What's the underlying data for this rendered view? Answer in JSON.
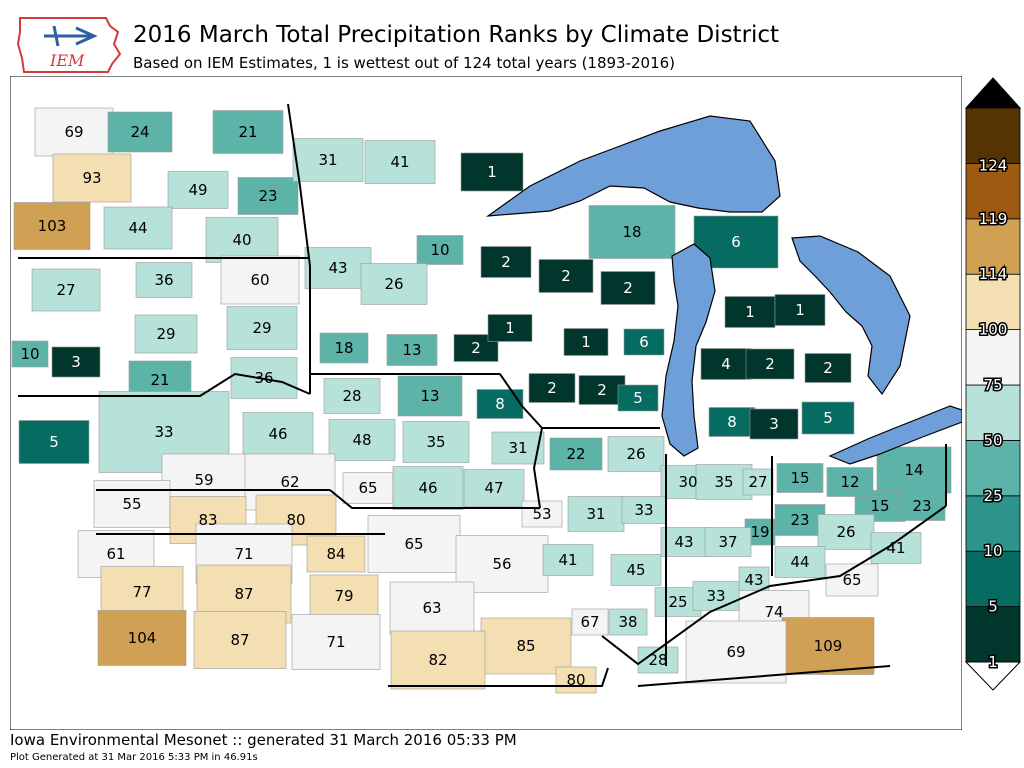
{
  "header": {
    "title": "2016 March Total Precipitation Ranks by Climate District",
    "subtitle": "Based on IEM Estimates, 1 is wettest out of 124 total years (1893-2016)",
    "logo_text": "IEM"
  },
  "footer": {
    "line1": "Iowa Environmental Mesonet :: generated 31 March 2016 05:33 PM",
    "line2": "Plot Generated at 31 Mar 2016 5:33 PM in 46.91s"
  },
  "colors": {
    "water": "#6f9fd8",
    "background": "#ffffff"
  },
  "colorbar": {
    "ticks": [
      "1",
      "5",
      "10",
      "25",
      "50",
      "75",
      "100",
      "114",
      "119",
      "124"
    ],
    "bins": [
      {
        "color": "#00362b"
      },
      {
        "color": "#066b60"
      },
      {
        "color": "#2c948b"
      },
      {
        "color": "#5eb3a8"
      },
      {
        "color": "#b6e2da"
      },
      {
        "color": "#f4f4f4"
      },
      {
        "color": "#f3dfb2"
      },
      {
        "color": "#d0a154"
      },
      {
        "color": "#9c5a10"
      },
      {
        "color": "#563305"
      }
    ]
  },
  "districts": [
    {
      "rank": "69",
      "color": "#f4f4f4"
    },
    {
      "rank": "24",
      "color": "#5eb3a8"
    },
    {
      "rank": "21",
      "color": "#5eb3a8"
    },
    {
      "rank": "93",
      "color": "#f3dfb2"
    },
    {
      "rank": "49",
      "color": "#b6e2da"
    },
    {
      "rank": "23",
      "color": "#5eb3a8"
    },
    {
      "rank": "103",
      "color": "#d0a154"
    },
    {
      "rank": "44",
      "color": "#b6e2da"
    },
    {
      "rank": "40",
      "color": "#b6e2da"
    },
    {
      "rank": "31",
      "color": "#b6e2da"
    },
    {
      "rank": "41",
      "color": "#b6e2da"
    },
    {
      "rank": "1",
      "color": "#00362b"
    },
    {
      "rank": "27",
      "color": "#b6e2da"
    },
    {
      "rank": "36",
      "color": "#b6e2da"
    },
    {
      "rank": "60",
      "color": "#f4f4f4"
    },
    {
      "rank": "43",
      "color": "#b6e2da"
    },
    {
      "rank": "10",
      "color": "#5eb3a8"
    },
    {
      "rank": "26",
      "color": "#b6e2da"
    },
    {
      "rank": "2",
      "color": "#00362b"
    },
    {
      "rank": "2",
      "color": "#00362b"
    },
    {
      "rank": "2",
      "color": "#00362b"
    },
    {
      "rank": "18",
      "color": "#5eb3a8"
    },
    {
      "rank": "6",
      "color": "#066b60"
    },
    {
      "rank": "10",
      "color": "#5eb3a8"
    },
    {
      "rank": "3",
      "color": "#00362b"
    },
    {
      "rank": "29",
      "color": "#b6e2da"
    },
    {
      "rank": "29",
      "color": "#b6e2da"
    },
    {
      "rank": "21",
      "color": "#5eb3a8"
    },
    {
      "rank": "36",
      "color": "#b6e2da"
    },
    {
      "rank": "18",
      "color": "#5eb3a8"
    },
    {
      "rank": "13",
      "color": "#5eb3a8"
    },
    {
      "rank": "2",
      "color": "#00362b"
    },
    {
      "rank": "1",
      "color": "#00362b"
    },
    {
      "rank": "1",
      "color": "#00362b"
    },
    {
      "rank": "6",
      "color": "#066b60"
    },
    {
      "rank": "1",
      "color": "#00362b"
    },
    {
      "rank": "1",
      "color": "#00362b"
    },
    {
      "rank": "4",
      "color": "#00362b"
    },
    {
      "rank": "2",
      "color": "#00362b"
    },
    {
      "rank": "2",
      "color": "#00362b"
    },
    {
      "rank": "2",
      "color": "#00362b"
    },
    {
      "rank": "2",
      "color": "#00362b"
    },
    {
      "rank": "5",
      "color": "#066b60"
    },
    {
      "rank": "5",
      "color": "#066b60"
    },
    {
      "rank": "8",
      "color": "#066b60"
    },
    {
      "rank": "3",
      "color": "#00362b"
    },
    {
      "rank": "5",
      "color": "#066b60"
    },
    {
      "rank": "33",
      "color": "#b6e2da"
    },
    {
      "rank": "46",
      "color": "#b6e2da"
    },
    {
      "rank": "28",
      "color": "#b6e2da"
    },
    {
      "rank": "13",
      "color": "#5eb3a8"
    },
    {
      "rank": "8",
      "color": "#066b60"
    },
    {
      "rank": "48",
      "color": "#b6e2da"
    },
    {
      "rank": "35",
      "color": "#b6e2da"
    },
    {
      "rank": "31",
      "color": "#b6e2da"
    },
    {
      "rank": "22",
      "color": "#5eb3a8"
    },
    {
      "rank": "26",
      "color": "#b6e2da"
    },
    {
      "rank": "14",
      "color": "#5eb3a8"
    },
    {
      "rank": "15",
      "color": "#5eb3a8"
    },
    {
      "rank": "12",
      "color": "#5eb3a8"
    },
    {
      "rank": "15",
      "color": "#5eb3a8"
    },
    {
      "rank": "23",
      "color": "#5eb3a8"
    },
    {
      "rank": "59",
      "color": "#f4f4f4"
    },
    {
      "rank": "62",
      "color": "#f4f4f4"
    },
    {
      "rank": "65",
      "color": "#f4f4f4"
    },
    {
      "rank": "46",
      "color": "#b6e2da"
    },
    {
      "rank": "47",
      "color": "#b6e2da"
    },
    {
      "rank": "30",
      "color": "#b6e2da"
    },
    {
      "rank": "35",
      "color": "#b6e2da"
    },
    {
      "rank": "27",
      "color": "#b6e2da"
    },
    {
      "rank": "55",
      "color": "#f4f4f4"
    },
    {
      "rank": "83",
      "color": "#f3dfb2"
    },
    {
      "rank": "80",
      "color": "#f3dfb2"
    },
    {
      "rank": "53",
      "color": "#f4f4f4"
    },
    {
      "rank": "31",
      "color": "#b6e2da"
    },
    {
      "rank": "33",
      "color": "#b6e2da"
    },
    {
      "rank": "19",
      "color": "#5eb3a8"
    },
    {
      "rank": "23",
      "color": "#5eb3a8"
    },
    {
      "rank": "26",
      "color": "#b6e2da"
    },
    {
      "rank": "41",
      "color": "#b6e2da"
    },
    {
      "rank": "61",
      "color": "#f4f4f4"
    },
    {
      "rank": "71",
      "color": "#f4f4f4"
    },
    {
      "rank": "84",
      "color": "#f3dfb2"
    },
    {
      "rank": "65",
      "color": "#f4f4f4"
    },
    {
      "rank": "56",
      "color": "#f4f4f4"
    },
    {
      "rank": "41",
      "color": "#b6e2da"
    },
    {
      "rank": "45",
      "color": "#b6e2da"
    },
    {
      "rank": "43",
      "color": "#b6e2da"
    },
    {
      "rank": "37",
      "color": "#b6e2da"
    },
    {
      "rank": "44",
      "color": "#b6e2da"
    },
    {
      "rank": "65",
      "color": "#f4f4f4"
    },
    {
      "rank": "77",
      "color": "#f3dfb2"
    },
    {
      "rank": "87",
      "color": "#f3dfb2"
    },
    {
      "rank": "79",
      "color": "#f3dfb2"
    },
    {
      "rank": "63",
      "color": "#f4f4f4"
    },
    {
      "rank": "43",
      "color": "#b6e2da"
    },
    {
      "rank": "74",
      "color": "#f4f4f4"
    },
    {
      "rank": "104",
      "color": "#d0a154"
    },
    {
      "rank": "87",
      "color": "#f3dfb2"
    },
    {
      "rank": "71",
      "color": "#f4f4f4"
    },
    {
      "rank": "85",
      "color": "#f3dfb2"
    },
    {
      "rank": "67",
      "color": "#f4f4f4"
    },
    {
      "rank": "38",
      "color": "#b6e2da"
    },
    {
      "rank": "25",
      "color": "#b6e2da"
    },
    {
      "rank": "33",
      "color": "#b6e2da"
    },
    {
      "rank": "109",
      "color": "#d0a154"
    },
    {
      "rank": "82",
      "color": "#f3dfb2"
    },
    {
      "rank": "28",
      "color": "#b6e2da"
    },
    {
      "rank": "69",
      "color": "#f4f4f4"
    },
    {
      "rank": "80",
      "color": "#f3dfb2"
    }
  ]
}
